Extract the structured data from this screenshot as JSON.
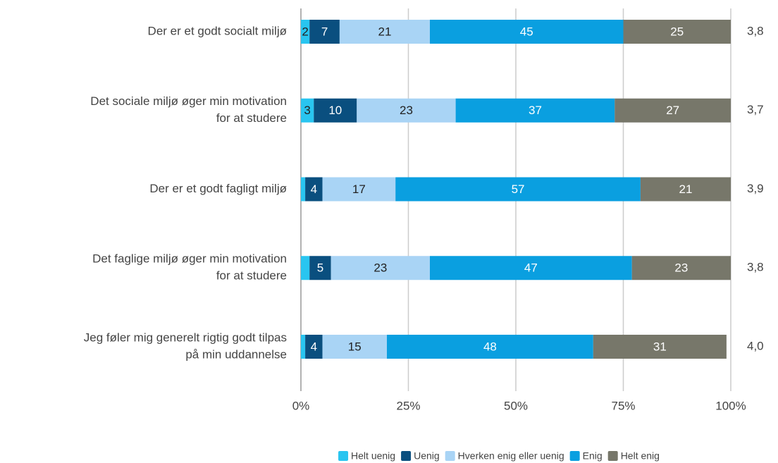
{
  "chart_data": {
    "type": "stacked-bar-horizontal",
    "categories": [
      [
        "Der er et godt socialt miljø"
      ],
      [
        "Det sociale miljø øger min motivation",
        "for at studere"
      ],
      [
        "Der er et godt fagligt miljø"
      ],
      [
        "Det faglige miljø øger min motivation",
        "for at studere"
      ],
      [
        "Jeg føler mig generelt rigtig godt tilpas",
        "på min uddannelse"
      ]
    ],
    "series": [
      {
        "name": "Helt uenig",
        "color": "#29c5f0",
        "values": [
          2,
          3,
          1,
          2,
          1
        ],
        "value_labels": [
          "2",
          "3",
          null,
          null,
          null
        ]
      },
      {
        "name": "Uenig",
        "color": "#0a4f7f",
        "values": [
          7,
          10,
          4,
          5,
          4
        ]
      },
      {
        "name": "Hverken enig eller uenig",
        "color": "#a9d4f5",
        "values": [
          21,
          23,
          17,
          23,
          15
        ]
      },
      {
        "name": "Enig",
        "color": "#0a9fe0",
        "values": [
          45,
          37,
          57,
          47,
          48
        ]
      },
      {
        "name": "Helt enig",
        "color": "#77776a",
        "values": [
          25,
          27,
          21,
          23,
          31
        ]
      }
    ],
    "averages": [
      "3,8",
      "3,7",
      "3,9",
      "3,8",
      "4,0"
    ],
    "xlim": [
      0,
      100
    ],
    "xticks": [
      {
        "value": 0,
        "label": "0%"
      },
      {
        "value": 25,
        "label": "25%"
      },
      {
        "value": 50,
        "label": "50%"
      },
      {
        "value": 75,
        "label": "75%"
      },
      {
        "value": 100,
        "label": "100%"
      }
    ],
    "grid": true,
    "legend": "bottom"
  }
}
